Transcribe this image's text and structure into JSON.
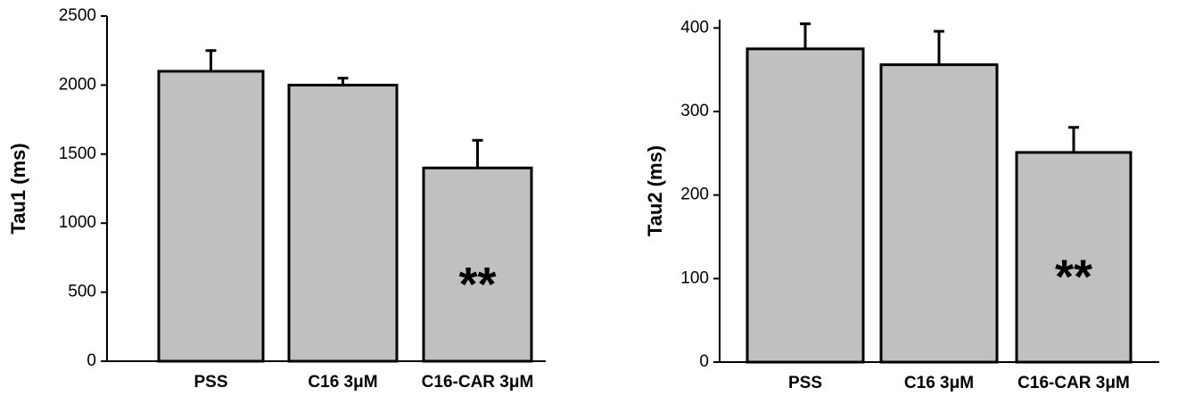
{
  "chart_data": [
    {
      "type": "bar",
      "y_label": "Tau1 (ms)",
      "categories": [
        "PSS",
        "C16 3μM",
        "C16-CAR 3μM"
      ],
      "values": [
        2100,
        2000,
        1400
      ],
      "errors": [
        150,
        50,
        200
      ],
      "annotations": [
        null,
        null,
        "**"
      ],
      "color": "#c0c0c0",
      "ylim": [
        0,
        2500
      ],
      "yticks": [
        0,
        500,
        1000,
        1500,
        2000,
        2500
      ]
    },
    {
      "type": "bar",
      "y_label": "Tau2 (ms)",
      "categories": [
        "PSS",
        "C16 3μM",
        "C16-CAR 3μM"
      ],
      "values": [
        375,
        356,
        251
      ],
      "errors": [
        30,
        40,
        30
      ],
      "annotations": [
        null,
        null,
        "**"
      ],
      "color": "#c0c0c0",
      "ylim": [
        0,
        410
      ],
      "yticks": [
        0,
        100,
        200,
        300,
        400
      ]
    }
  ]
}
